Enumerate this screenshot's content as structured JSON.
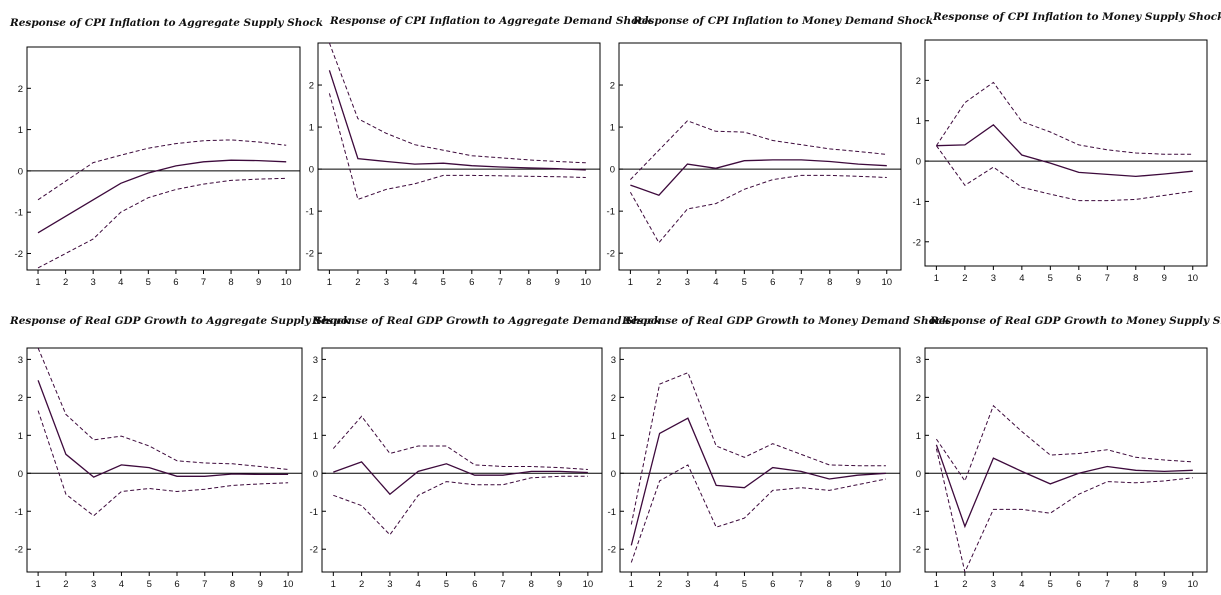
{
  "colors": {
    "line": "#3d0a3c",
    "frame": "#000000",
    "zero_line": "#000000",
    "background": "#ffffff"
  },
  "chart_data": [
    {
      "type": "line",
      "title": "Response of CPI Inflation to Aggregate Supply Shock",
      "x": [
        1,
        2,
        3,
        4,
        5,
        6,
        7,
        8,
        9,
        10
      ],
      "xlim": [
        0.6,
        10.5
      ],
      "ylim": [
        -2.4,
        3.0
      ],
      "yticks": [
        -2,
        -1,
        0,
        1,
        2
      ],
      "series": [
        {
          "role": "response",
          "style": "solid",
          "values": [
            -1.5,
            -1.1,
            -0.7,
            -0.3,
            -0.05,
            0.12,
            0.22,
            0.26,
            0.25,
            0.22
          ]
        },
        {
          "role": "upper band",
          "style": "dashed",
          "values": [
            -0.7,
            -0.25,
            0.2,
            0.38,
            0.55,
            0.66,
            0.73,
            0.75,
            0.7,
            0.62
          ]
        },
        {
          "role": "lower band",
          "style": "dashed",
          "values": [
            -2.35,
            -2.0,
            -1.65,
            -1.0,
            -0.65,
            -0.45,
            -0.32,
            -0.23,
            -0.2,
            -0.18
          ]
        }
      ]
    },
    {
      "type": "line",
      "title": "Response of CPI Inflation to Aggregate Demand Shock",
      "x": [
        1,
        2,
        3,
        4,
        5,
        6,
        7,
        8,
        9,
        10
      ],
      "xlim": [
        0.6,
        10.5
      ],
      "ylim": [
        -2.4,
        3.0
      ],
      "yticks": [
        -2,
        -1,
        0,
        1,
        2
      ],
      "series": [
        {
          "role": "response",
          "style": "solid",
          "values": [
            2.35,
            0.25,
            0.18,
            0.12,
            0.14,
            0.08,
            0.05,
            0.03,
            0.01,
            -0.02
          ]
        },
        {
          "role": "upper band",
          "style": "dashed",
          "values": [
            3.0,
            1.2,
            0.85,
            0.58,
            0.45,
            0.32,
            0.27,
            0.22,
            0.18,
            0.15
          ]
        },
        {
          "role": "lower band",
          "style": "dashed",
          "values": [
            1.8,
            -0.72,
            -0.48,
            -0.35,
            -0.15,
            -0.15,
            -0.16,
            -0.17,
            -0.18,
            -0.2
          ]
        }
      ]
    },
    {
      "type": "line",
      "title": "Response of CPI Inflation to Money Demand Shock",
      "x": [
        1,
        2,
        3,
        4,
        5,
        6,
        7,
        8,
        9,
        10
      ],
      "xlim": [
        0.6,
        10.5
      ],
      "ylim": [
        -2.4,
        3.0
      ],
      "yticks": [
        -2,
        -1,
        0,
        1,
        2
      ],
      "series": [
        {
          "role": "response",
          "style": "solid",
          "values": [
            -0.38,
            -0.62,
            0.12,
            0.02,
            0.2,
            0.22,
            0.22,
            0.18,
            0.12,
            0.08
          ]
        },
        {
          "role": "upper band",
          "style": "dashed",
          "values": [
            -0.25,
            0.45,
            1.15,
            0.9,
            0.88,
            0.68,
            0.58,
            0.48,
            0.42,
            0.35
          ]
        },
        {
          "role": "lower band",
          "style": "dashed",
          "values": [
            -0.55,
            -1.75,
            -0.95,
            -0.82,
            -0.48,
            -0.25,
            -0.15,
            -0.15,
            -0.17,
            -0.2
          ]
        }
      ]
    },
    {
      "type": "line",
      "title": "Response of CPI Inflation to Money Supply Shock",
      "x": [
        1,
        2,
        3,
        4,
        5,
        6,
        7,
        8,
        9,
        10
      ],
      "xlim": [
        0.6,
        10.5
      ],
      "ylim": [
        -2.6,
        3.0
      ],
      "yticks": [
        -2,
        -1,
        0,
        1,
        2
      ],
      "series": [
        {
          "role": "response",
          "style": "solid",
          "values": [
            0.38,
            0.4,
            0.9,
            0.15,
            -0.05,
            -0.28,
            -0.33,
            -0.38,
            -0.32,
            -0.25
          ]
        },
        {
          "role": "upper band",
          "style": "dashed",
          "values": [
            0.38,
            1.45,
            1.95,
            0.98,
            0.72,
            0.4,
            0.28,
            0.2,
            0.17,
            0.17
          ]
        },
        {
          "role": "lower band",
          "style": "dashed",
          "values": [
            0.38,
            -0.6,
            -0.15,
            -0.65,
            -0.82,
            -0.98,
            -0.98,
            -0.95,
            -0.85,
            -0.75
          ]
        }
      ]
    },
    {
      "type": "line",
      "title": "Response of Real GDP Growth to Aggregate Supply Shock",
      "x": [
        1,
        2,
        3,
        4,
        5,
        6,
        7,
        8,
        9,
        10
      ],
      "xlim": [
        0.6,
        10.5
      ],
      "ylim": [
        -2.6,
        3.3
      ],
      "yticks": [
        -2,
        -1,
        0,
        1,
        2,
        3
      ],
      "series": [
        {
          "role": "response",
          "style": "solid",
          "values": [
            2.45,
            0.5,
            -0.1,
            0.22,
            0.15,
            -0.08,
            -0.08,
            -0.02,
            -0.03,
            -0.03
          ]
        },
        {
          "role": "upper band",
          "style": "dashed",
          "values": [
            3.3,
            1.55,
            0.88,
            0.98,
            0.72,
            0.33,
            0.27,
            0.25,
            0.18,
            0.1
          ]
        },
        {
          "role": "lower band",
          "style": "dashed",
          "values": [
            1.65,
            -0.55,
            -1.12,
            -0.48,
            -0.4,
            -0.48,
            -0.42,
            -0.32,
            -0.28,
            -0.25
          ]
        }
      ]
    },
    {
      "type": "line",
      "title": "Response of Real GDP Growth to Aggregate Demand Shock",
      "x": [
        1,
        2,
        3,
        4,
        5,
        6,
        7,
        8,
        9,
        10
      ],
      "xlim": [
        0.6,
        10.5
      ],
      "ylim": [
        -2.6,
        3.3
      ],
      "yticks": [
        -2,
        -1,
        0,
        1,
        2,
        3
      ],
      "series": [
        {
          "role": "response",
          "style": "solid",
          "values": [
            0.03,
            0.3,
            -0.55,
            0.05,
            0.25,
            -0.05,
            -0.05,
            0.05,
            0.05,
            0.02
          ]
        },
        {
          "role": "upper band",
          "style": "dashed",
          "values": [
            0.65,
            1.5,
            0.52,
            0.72,
            0.72,
            0.22,
            0.18,
            0.18,
            0.15,
            0.1
          ]
        },
        {
          "role": "lower band",
          "style": "dashed",
          "values": [
            -0.58,
            -0.85,
            -1.62,
            -0.58,
            -0.22,
            -0.3,
            -0.3,
            -0.12,
            -0.08,
            -0.08
          ]
        }
      ]
    },
    {
      "type": "line",
      "title": "Response of Real GDP Growth to Money Demand Shock",
      "x": [
        1,
        2,
        3,
        4,
        5,
        6,
        7,
        8,
        9,
        10
      ],
      "xlim": [
        0.6,
        10.5
      ],
      "ylim": [
        -2.6,
        3.3
      ],
      "yticks": [
        -2,
        -1,
        0,
        1,
        2,
        3
      ],
      "series": [
        {
          "role": "response",
          "style": "solid",
          "values": [
            -1.9,
            1.05,
            1.45,
            -0.32,
            -0.38,
            0.15,
            0.05,
            -0.15,
            -0.05,
            0.0
          ]
        },
        {
          "role": "upper band",
          "style": "dashed",
          "values": [
            -1.35,
            2.35,
            2.65,
            0.72,
            0.42,
            0.78,
            0.5,
            0.22,
            0.2,
            0.2
          ]
        },
        {
          "role": "lower band",
          "style": "dashed",
          "values": [
            -2.35,
            -0.2,
            0.22,
            -1.42,
            -1.18,
            -0.45,
            -0.38,
            -0.45,
            -0.3,
            -0.15
          ]
        }
      ]
    },
    {
      "type": "line",
      "title": "Response of Real GDP Growth to Money Supply Shock",
      "x": [
        1,
        2,
        3,
        4,
        5,
        6,
        7,
        8,
        9,
        10
      ],
      "xlim": [
        0.6,
        10.5
      ],
      "ylim": [
        -2.6,
        3.3
      ],
      "yticks": [
        -2,
        -1,
        0,
        1,
        2,
        3
      ],
      "series": [
        {
          "role": "response",
          "style": "solid",
          "values": [
            0.75,
            -1.4,
            0.4,
            0.05,
            -0.28,
            0.0,
            0.18,
            0.08,
            0.05,
            0.08
          ]
        },
        {
          "role": "upper band",
          "style": "dashed",
          "values": [
            0.9,
            -0.2,
            1.78,
            1.1,
            0.48,
            0.52,
            0.62,
            0.42,
            0.35,
            0.3
          ]
        },
        {
          "role": "lower band",
          "style": "dashed",
          "values": [
            0.65,
            -2.6,
            -0.95,
            -0.95,
            -1.05,
            -0.55,
            -0.22,
            -0.25,
            -0.2,
            -0.12
          ]
        }
      ]
    }
  ]
}
